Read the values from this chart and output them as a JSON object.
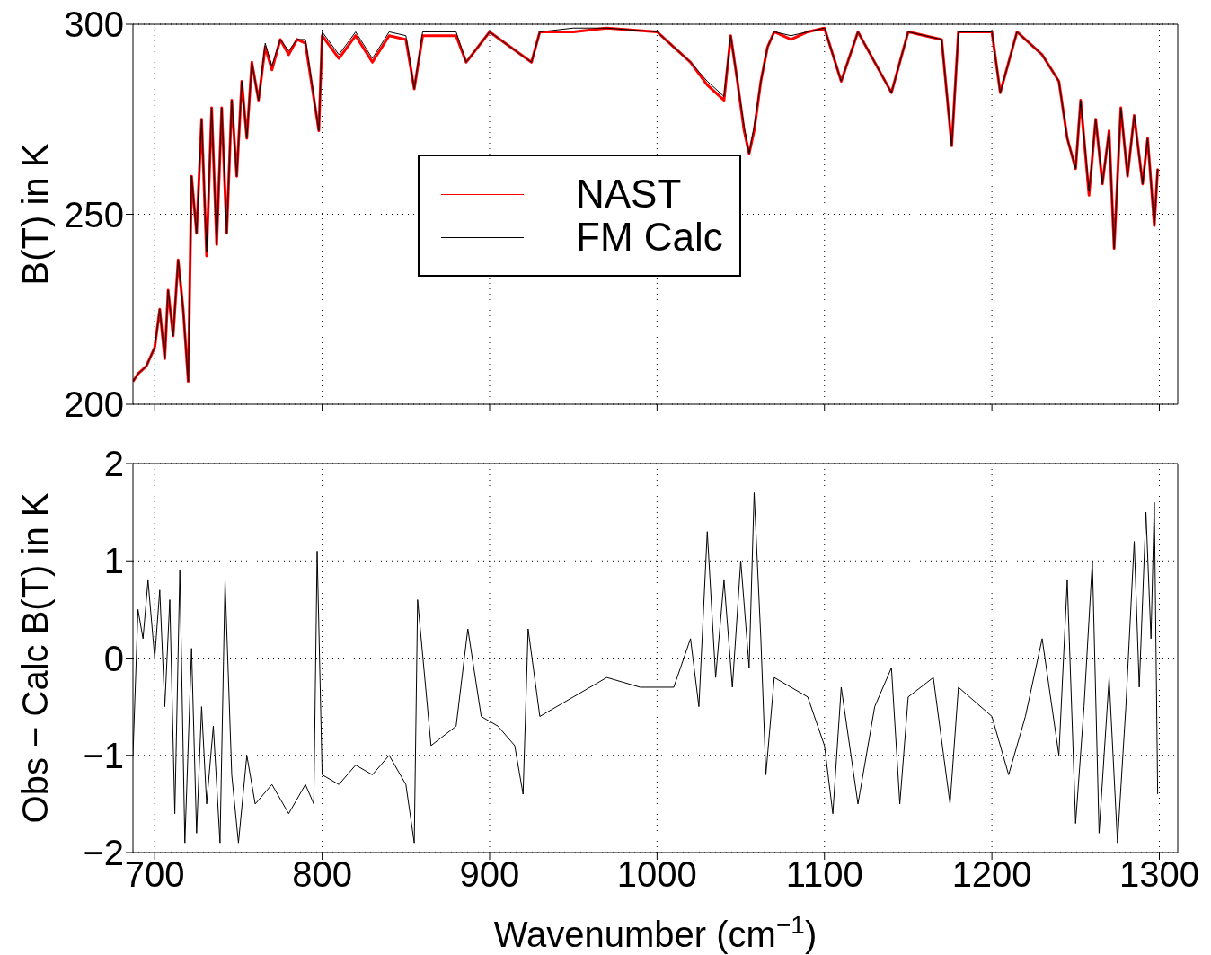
{
  "chart_data": [
    {
      "type": "line",
      "ylabel": "B(T) in K",
      "xlim": [
        687,
        1311
      ],
      "xticks": [
        700,
        800,
        900,
        1000,
        1100,
        1200,
        1300
      ],
      "ylim": [
        200,
        300
      ],
      "yticks": [
        200,
        250,
        300
      ],
      "grid": true,
      "legend": "center",
      "tick_labels": "y",
      "x": [
        687,
        690,
        695,
        700,
        703,
        706,
        708,
        711,
        714,
        717,
        720,
        722,
        725,
        728,
        731,
        734,
        737,
        740,
        743,
        746,
        749,
        752,
        755,
        758,
        762,
        766,
        770,
        775,
        780,
        785,
        790,
        798,
        800,
        810,
        820,
        830,
        840,
        850,
        855,
        860,
        880,
        886,
        900,
        925,
        930,
        950,
        970,
        1000,
        1010,
        1020,
        1030,
        1040,
        1044,
        1048,
        1052,
        1055,
        1058,
        1062,
        1066,
        1070,
        1080,
        1090,
        1100,
        1110,
        1120,
        1140,
        1150,
        1170,
        1176,
        1180,
        1200,
        1205,
        1215,
        1230,
        1240,
        1245,
        1250,
        1253,
        1258,
        1262,
        1266,
        1270,
        1273,
        1277,
        1281,
        1285,
        1290,
        1293,
        1297,
        1299
      ],
      "series": [
        {
          "name": "NAST",
          "color": "#ff0000",
          "values": [
            206,
            208,
            210,
            215,
            225,
            212,
            230,
            218,
            238,
            225,
            206,
            260,
            245,
            275,
            239,
            278,
            242,
            278,
            245,
            280,
            260,
            285,
            270,
            290,
            280,
            294,
            288,
            296,
            292,
            296,
            295,
            272,
            297,
            291,
            297,
            290,
            297,
            296,
            283,
            297,
            297,
            290,
            298,
            290,
            298,
            298,
            299,
            298,
            294,
            290,
            284,
            280,
            297,
            285,
            272,
            266,
            272,
            285,
            294,
            298,
            296,
            298,
            299,
            285,
            298,
            282,
            298,
            296,
            268,
            298,
            298,
            282,
            298,
            292,
            285,
            270,
            262,
            280,
            255,
            275,
            258,
            272,
            241,
            278,
            260,
            276,
            258,
            270,
            247,
            262
          ]
        },
        {
          "name": "FM Calc",
          "color": "#000000",
          "values": [
            206,
            208,
            210,
            215,
            225,
            212,
            230,
            218,
            238,
            225,
            206,
            260,
            245,
            275,
            240,
            278,
            242,
            278,
            245,
            280,
            260,
            285,
            270,
            290,
            280,
            295,
            289,
            296,
            293,
            296,
            296,
            272,
            298,
            292,
            298,
            291,
            298,
            297,
            283,
            298,
            298,
            290,
            298,
            290,
            298,
            299,
            299,
            298,
            294,
            290,
            285,
            281,
            297,
            285,
            273,
            266,
            273,
            285,
            294,
            298,
            297,
            298,
            299,
            285,
            298,
            282,
            298,
            296,
            268,
            298,
            298,
            282,
            298,
            292,
            285,
            270,
            262,
            280,
            256,
            275,
            258,
            272,
            241,
            278,
            260,
            276,
            258,
            270,
            247,
            262
          ]
        }
      ]
    },
    {
      "type": "line",
      "xlabel": "Wavenumber (cm$^{−1}$)",
      "ylabel": "Obs − Calc B(T) in K",
      "xlim": [
        687,
        1311
      ],
      "xticks": [
        700,
        800,
        900,
        1000,
        1100,
        1200,
        1300
      ],
      "ylim": [
        -2,
        2
      ],
      "yticks": [
        {
          "value": -2,
          "label": "−2"
        },
        {
          "value": -1,
          "label": "−1"
        },
        0,
        1,
        2
      ],
      "grid": true,
      "x": [
        687,
        690,
        693,
        696,
        700,
        703,
        706,
        709,
        712,
        715,
        718,
        722,
        725,
        728,
        731,
        735,
        739,
        742,
        746,
        750,
        755,
        760,
        770,
        780,
        790,
        795,
        797,
        800,
        810,
        820,
        830,
        840,
        850,
        855,
        857,
        865,
        880,
        887,
        895,
        905,
        915,
        920,
        923,
        930,
        950,
        970,
        990,
        1010,
        1020,
        1025,
        1030,
        1035,
        1040,
        1045,
        1050,
        1055,
        1058,
        1062,
        1065,
        1070,
        1090,
        1100,
        1105,
        1110,
        1120,
        1130,
        1140,
        1145,
        1150,
        1165,
        1175,
        1180,
        1200,
        1210,
        1220,
        1230,
        1240,
        1245,
        1250,
        1255,
        1260,
        1264,
        1270,
        1275,
        1280,
        1285,
        1288,
        1292,
        1295,
        1297,
        1299
      ],
      "series": [
        {
          "color": "#000000",
          "values": [
            -1.0,
            0.5,
            0.2,
            0.8,
            0.0,
            0.7,
            -0.5,
            0.6,
            -1.6,
            0.9,
            -1.9,
            0.1,
            -1.8,
            -0.5,
            -1.5,
            -0.7,
            -1.9,
            0.8,
            -1.2,
            -1.9,
            -1.0,
            -1.5,
            -1.3,
            -1.6,
            -1.3,
            -1.5,
            1.1,
            -1.2,
            -1.3,
            -1.1,
            -1.2,
            -1.0,
            -1.3,
            -1.9,
            0.6,
            -0.9,
            -0.7,
            0.3,
            -0.6,
            -0.7,
            -0.9,
            -1.4,
            0.3,
            -0.6,
            -0.4,
            -0.2,
            -0.3,
            -0.3,
            0.2,
            -0.5,
            1.3,
            -0.2,
            0.8,
            -0.3,
            1.0,
            -0.1,
            1.7,
            0.2,
            -1.2,
            -0.2,
            -0.4,
            -0.9,
            -1.6,
            -0.3,
            -1.5,
            -0.5,
            -0.1,
            -1.5,
            -0.4,
            -0.2,
            -1.5,
            -0.3,
            -0.6,
            -1.2,
            -0.6,
            0.2,
            -1.0,
            0.8,
            -1.7,
            -0.5,
            1.0,
            -1.8,
            -0.2,
            -1.9,
            -0.5,
            1.2,
            -0.3,
            1.5,
            0.2,
            1.6,
            -1.4
          ]
        }
      ]
    }
  ]
}
